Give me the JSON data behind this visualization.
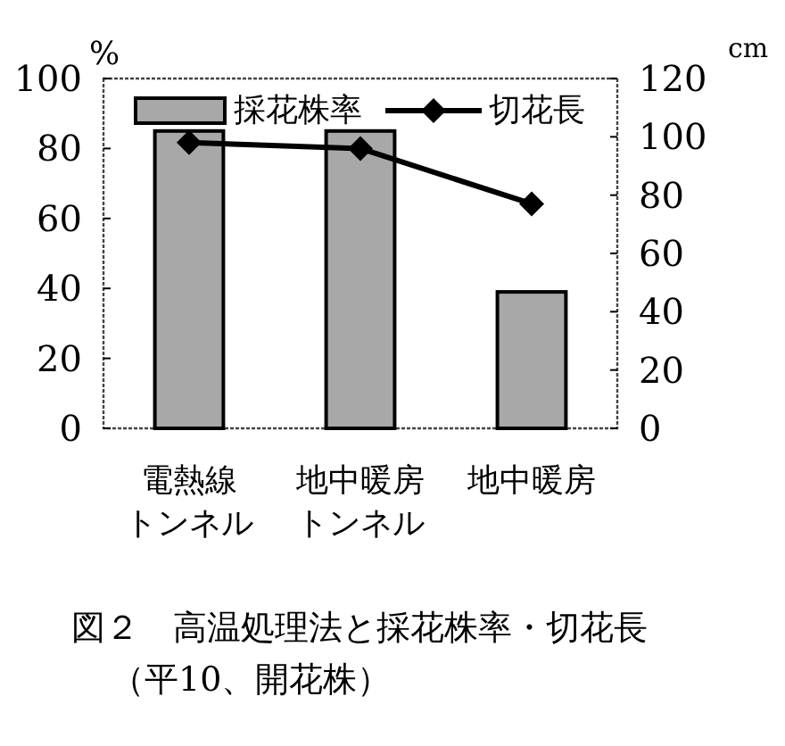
{
  "chart_data": {
    "type": "bar",
    "title": "図２　高温処理法と採花株率・切花長",
    "subtitle": "（平10、開花株）",
    "ylabel": "%",
    "y2label": "cm",
    "categories": [
      "電熱線トンネル",
      "地中暖房トンネル",
      "地中暖房"
    ],
    "series": [
      {
        "name": "採花株率",
        "color": "#a8a8a8",
        "values": [
          85,
          85,
          39
        ]
      },
      {
        "name": "切花長",
        "type": "line",
        "axis": "y2",
        "color": "#000000",
        "values": [
          98,
          96,
          77
        ]
      }
    ],
    "ylim": [
      0,
      100
    ],
    "yticks": [
      0,
      20,
      40,
      60,
      80,
      100
    ],
    "y2lim": [
      0,
      120
    ],
    "y2ticks": [
      0,
      20,
      40,
      60,
      80,
      100,
      120
    ],
    "legend": "top",
    "marker": "diamond",
    "grid": false
  }
}
